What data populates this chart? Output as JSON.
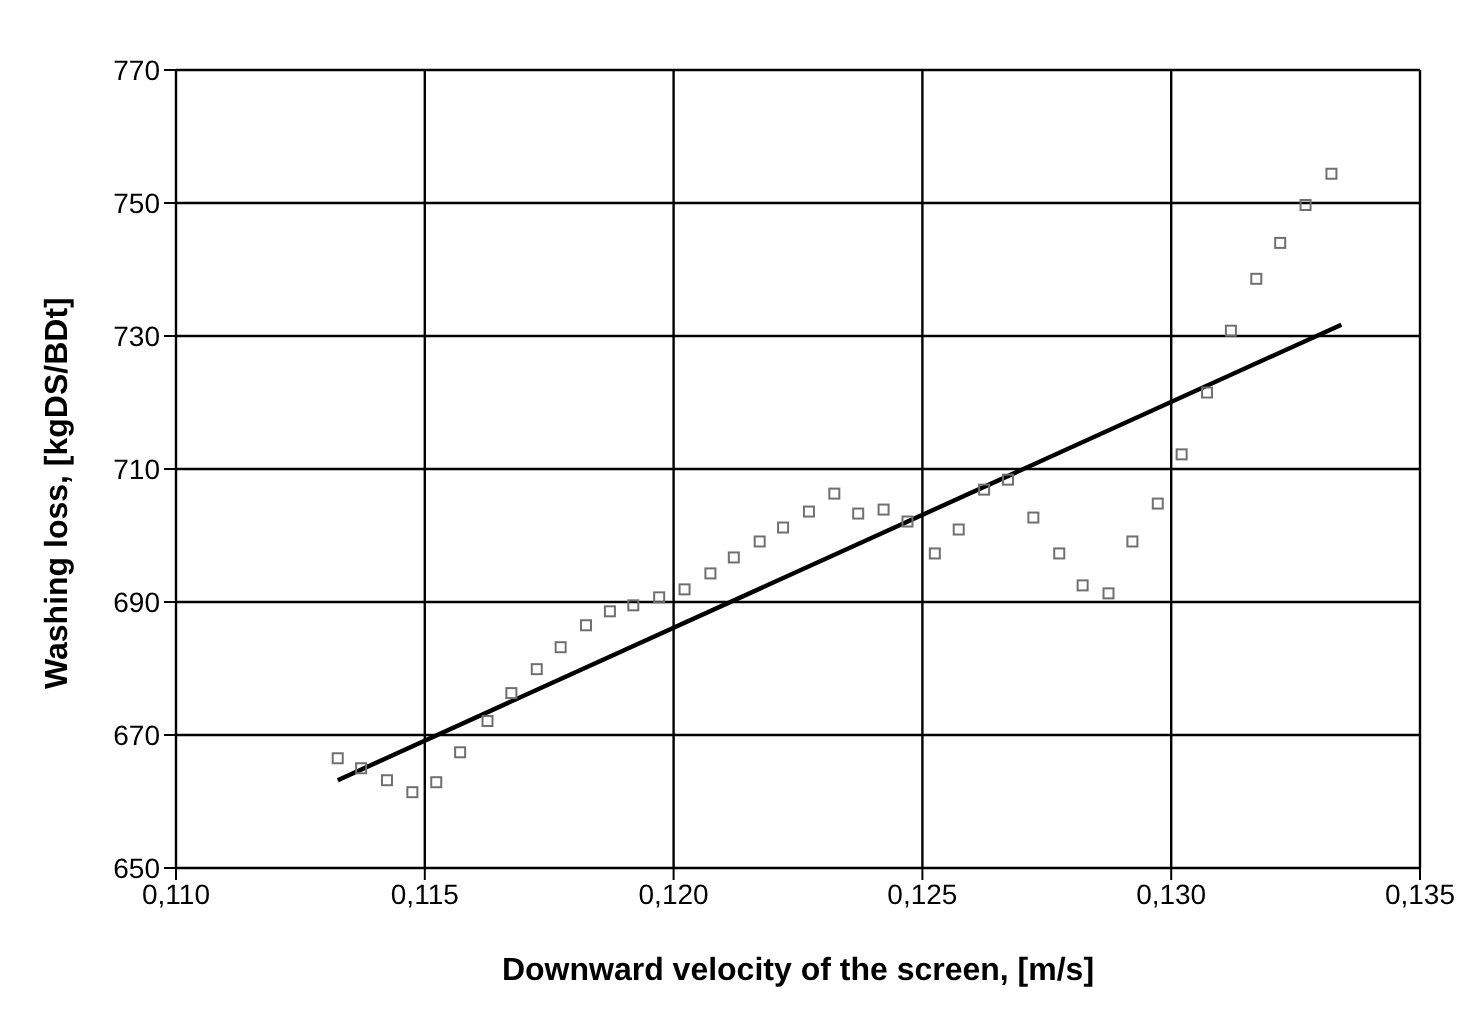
{
  "chart_data": {
    "type": "scatter",
    "xlabel": "Downward velocity of the screen, [m/s]",
    "ylabel": "Washing loss, [kgDS/BDt]",
    "xlim": [
      0.11,
      0.135
    ],
    "xticks": [
      {
        "value": 0.11,
        "label": "0,110"
      },
      {
        "value": 0.115,
        "label": "0,115"
      },
      {
        "value": 0.12,
        "label": "0,120"
      },
      {
        "value": 0.125,
        "label": "0,125"
      },
      {
        "value": 0.13,
        "label": "0,130"
      },
      {
        "value": 0.135,
        "label": "0,135"
      }
    ],
    "ylim": [
      650,
      770
    ],
    "yticks": [
      650,
      670,
      690,
      710,
      730,
      750,
      770
    ],
    "grid": true,
    "marker": "square",
    "series": [
      {
        "color": "#707070",
        "x": [
          0.11325,
          0.11372,
          0.11424,
          0.11475,
          0.11523,
          0.11571,
          0.11626,
          0.11674,
          0.11725,
          0.11773,
          0.11824,
          0.11872,
          0.11919,
          0.11971,
          0.12022,
          0.12074,
          0.12121,
          0.12173,
          0.1222,
          0.12272,
          0.12323,
          0.12371,
          0.12422,
          0.1247,
          0.12525,
          0.12573,
          0.12624,
          0.12672,
          0.12723,
          0.12775,
          0.12822,
          0.12874,
          0.12922,
          0.12973,
          0.13021,
          0.13072,
          0.1312,
          0.13171,
          0.13219,
          0.1327,
          0.13322
        ],
        "values": [
          666.5,
          665,
          663.2,
          661.4,
          662.9,
          667.4,
          672.1,
          676.3,
          679.9,
          683.2,
          686.5,
          688.6,
          689.5,
          690.7,
          691.9,
          694.3,
          696.7,
          699.1,
          701.2,
          703.6,
          706.3,
          703.3,
          703.9,
          702.1,
          697.3,
          700.9,
          706.9,
          708.4,
          702.7,
          697.3,
          692.5,
          691.3,
          699.1,
          704.8,
          712.2,
          721.5,
          730.8,
          738.6,
          744,
          749.7,
          754.4
        ]
      },
      {
        "type": "line",
        "color": "#000000",
        "marker": "none",
        "x": [
          0.11325,
          0.13342
        ],
        "values": [
          663.2,
          731.7
        ]
      }
    ]
  }
}
